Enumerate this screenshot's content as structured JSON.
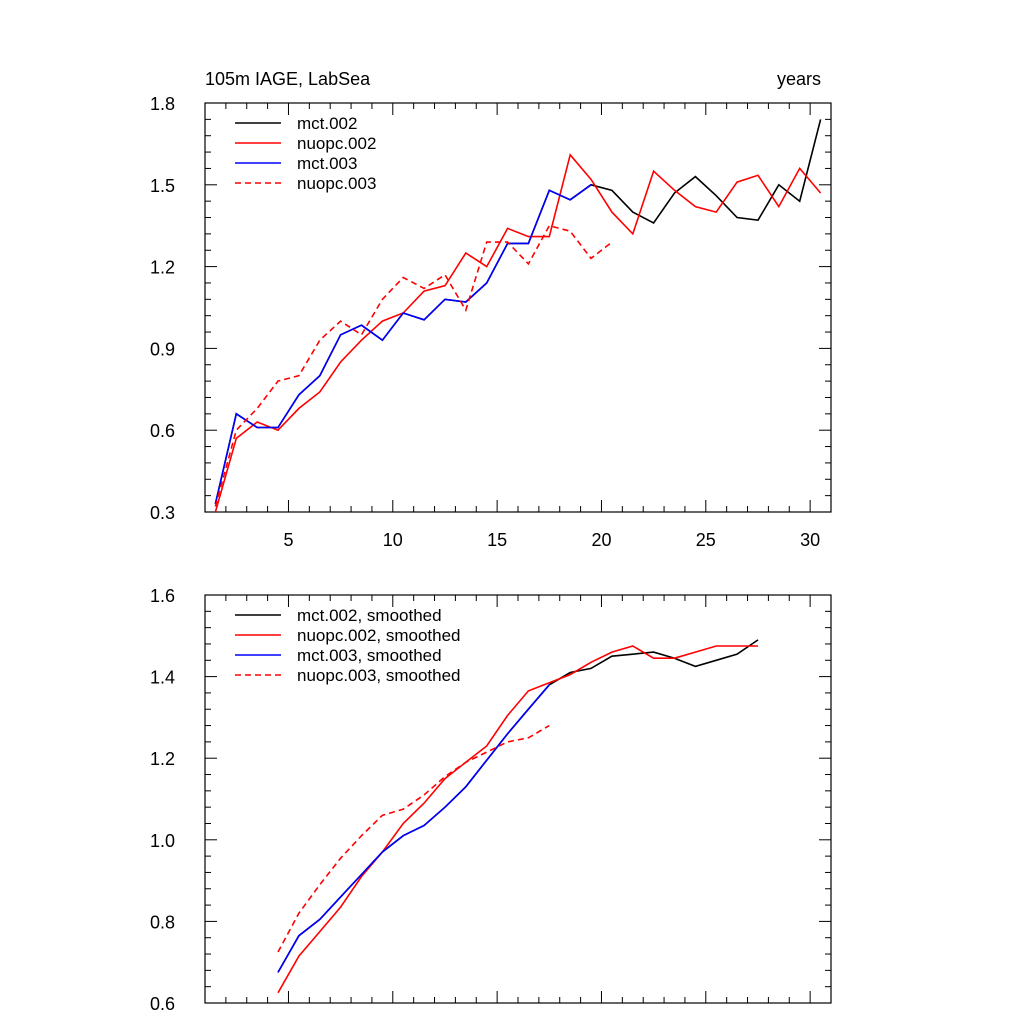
{
  "chart_data": [
    {
      "type": "line",
      "title": "105m IAGE, LabSea",
      "title_right": "years",
      "xlim": [
        1,
        31
      ],
      "ylim": [
        0.3,
        1.8
      ],
      "xticks": [
        5,
        10,
        15,
        20,
        25,
        30
      ],
      "xtick_labels": [
        "5",
        "10",
        "15",
        "20",
        "25",
        "30"
      ],
      "yticks": [
        0.3,
        0.6,
        0.9,
        1.2,
        1.5,
        1.8
      ],
      "ytick_labels": [
        "0.3",
        "0.6",
        "0.9",
        "1.2",
        "1.5",
        "1.8"
      ],
      "legend_position": "top-left",
      "series": [
        {
          "name": "mct.002",
          "color": "#000000",
          "dash": "solid",
          "x": [
            1.5,
            2.5,
            3.5,
            4.5,
            5.5,
            6.5,
            7.5,
            8.5,
            9.5,
            10.5,
            11.5,
            12.5,
            13.5,
            14.5,
            15.5,
            16.5,
            17.5,
            18.5,
            19.5,
            20.5,
            21.5,
            22.5,
            23.5,
            24.5,
            25.5,
            26.5,
            27.5,
            28.5,
            29.5,
            30.5
          ],
          "y": [
            0.33,
            0.66,
            0.61,
            0.61,
            0.73,
            0.8,
            0.95,
            0.985,
            0.93,
            1.03,
            1.005,
            1.08,
            1.07,
            1.14,
            1.285,
            1.285,
            1.48,
            1.445,
            1.5,
            1.48,
            1.4,
            1.36,
            1.47,
            1.53,
            1.46,
            1.38,
            1.37,
            1.5,
            1.44,
            1.74
          ]
        },
        {
          "name": "nuopc.002",
          "color": "#ff0000",
          "dash": "solid",
          "x": [
            1.5,
            2.5,
            3.5,
            4.5,
            5.5,
            6.5,
            7.5,
            8.5,
            9.5,
            10.5,
            11.5,
            12.5,
            13.5,
            14.5,
            15.5,
            16.5,
            17.5,
            18.5,
            19.5,
            20.5,
            21.5,
            22.5,
            23.5,
            24.5,
            25.5,
            26.5,
            27.5,
            28.5,
            29.5,
            30.5
          ],
          "y": [
            0.3,
            0.57,
            0.63,
            0.6,
            0.68,
            0.74,
            0.85,
            0.93,
            1.0,
            1.03,
            1.11,
            1.13,
            1.25,
            1.2,
            1.34,
            1.31,
            1.31,
            1.61,
            1.52,
            1.4,
            1.32,
            1.55,
            1.48,
            1.42,
            1.4,
            1.51,
            1.535,
            1.42,
            1.56,
            1.47
          ]
        },
        {
          "name": "mct.003",
          "color": "#0000ff",
          "dash": "solid",
          "x": [
            1.5,
            2.5,
            3.5,
            4.5,
            5.5,
            6.5,
            7.5,
            8.5,
            9.5,
            10.5,
            11.5,
            12.5,
            13.5,
            14.5,
            15.5,
            16.5,
            17.5,
            18.5,
            19.5
          ],
          "y": [
            0.33,
            0.66,
            0.61,
            0.61,
            0.73,
            0.8,
            0.95,
            0.985,
            0.93,
            1.03,
            1.005,
            1.08,
            1.07,
            1.14,
            1.285,
            1.285,
            1.48,
            1.445,
            1.5
          ]
        },
        {
          "name": "nuopc.003",
          "color": "#ff0000",
          "dash": "dashed",
          "x": [
            1.5,
            2.5,
            3.5,
            4.5,
            5.5,
            6.5,
            7.5,
            8.5,
            9.5,
            10.5,
            11.5,
            12.5,
            13.5,
            14.5,
            15.5,
            16.5,
            17.5,
            18.5,
            19.5,
            20.5
          ],
          "y": [
            0.32,
            0.6,
            0.68,
            0.78,
            0.8,
            0.93,
            1.0,
            0.95,
            1.08,
            1.16,
            1.12,
            1.17,
            1.04,
            1.29,
            1.29,
            1.21,
            1.35,
            1.33,
            1.23,
            1.29
          ]
        }
      ]
    },
    {
      "type": "line",
      "title": "",
      "xlim": [
        1,
        31
      ],
      "ylim": [
        0.6,
        1.6
      ],
      "xticks": [
        5,
        10,
        15,
        20,
        25,
        30
      ],
      "xtick_labels": [],
      "yticks": [
        0.6,
        0.8,
        1.0,
        1.2,
        1.4,
        1.6
      ],
      "ytick_labels": [
        "0.6",
        "0.8",
        "1.0",
        "1.2",
        "1.4",
        "1.6"
      ],
      "legend_position": "top-left",
      "series": [
        {
          "name": "mct.002, smoothed",
          "color": "#000000",
          "dash": "solid",
          "x": [
            4.5,
            5.5,
            6.5,
            7.5,
            8.5,
            9.5,
            10.5,
            11.5,
            12.5,
            13.5,
            14.5,
            15.5,
            16.5,
            17.5,
            18.5,
            19.5,
            20.5,
            21.5,
            22.5,
            23.5,
            24.5,
            25.5,
            26.5,
            27.5
          ],
          "y": [
            0.675,
            0.765,
            0.805,
            0.86,
            0.915,
            0.97,
            1.01,
            1.035,
            1.08,
            1.13,
            1.195,
            1.26,
            1.32,
            1.38,
            1.41,
            1.42,
            1.45,
            1.455,
            1.46,
            1.445,
            1.425,
            1.44,
            1.455,
            1.49
          ]
        },
        {
          "name": "nuopc.002, smoothed",
          "color": "#ff0000",
          "dash": "solid",
          "x": [
            4.5,
            5.5,
            6.5,
            7.5,
            8.5,
            9.5,
            10.5,
            11.5,
            12.5,
            13.5,
            14.5,
            15.5,
            16.5,
            17.5,
            18.5,
            19.5,
            20.5,
            21.5,
            22.5,
            23.5,
            24.5,
            25.5,
            26.5,
            27.5
          ],
          "y": [
            0.625,
            0.715,
            0.775,
            0.835,
            0.91,
            0.97,
            1.04,
            1.09,
            1.15,
            1.19,
            1.23,
            1.305,
            1.365,
            1.385,
            1.405,
            1.435,
            1.46,
            1.475,
            1.445,
            1.445,
            1.46,
            1.475,
            1.475,
            1.475
          ]
        },
        {
          "name": "mct.003, smoothed",
          "color": "#0000ff",
          "dash": "solid",
          "x": [
            4.5,
            5.5,
            6.5,
            7.5,
            8.5,
            9.5,
            10.5,
            11.5,
            12.5,
            13.5,
            14.5,
            15.5,
            16.5,
            17.5
          ],
          "y": [
            0.675,
            0.765,
            0.805,
            0.86,
            0.915,
            0.97,
            1.01,
            1.035,
            1.08,
            1.13,
            1.195,
            1.26,
            1.32,
            1.38
          ]
        },
        {
          "name": "nuopc.003, smoothed",
          "color": "#ff0000",
          "dash": "dashed",
          "x": [
            4.5,
            5.5,
            6.5,
            7.5,
            8.5,
            9.5,
            10.5,
            11.5,
            12.5,
            13.5,
            14.5,
            15.5,
            16.5,
            17.5
          ],
          "y": [
            0.725,
            0.82,
            0.89,
            0.955,
            1.01,
            1.06,
            1.075,
            1.11,
            1.155,
            1.19,
            1.215,
            1.24,
            1.25,
            1.28
          ]
        }
      ]
    }
  ]
}
